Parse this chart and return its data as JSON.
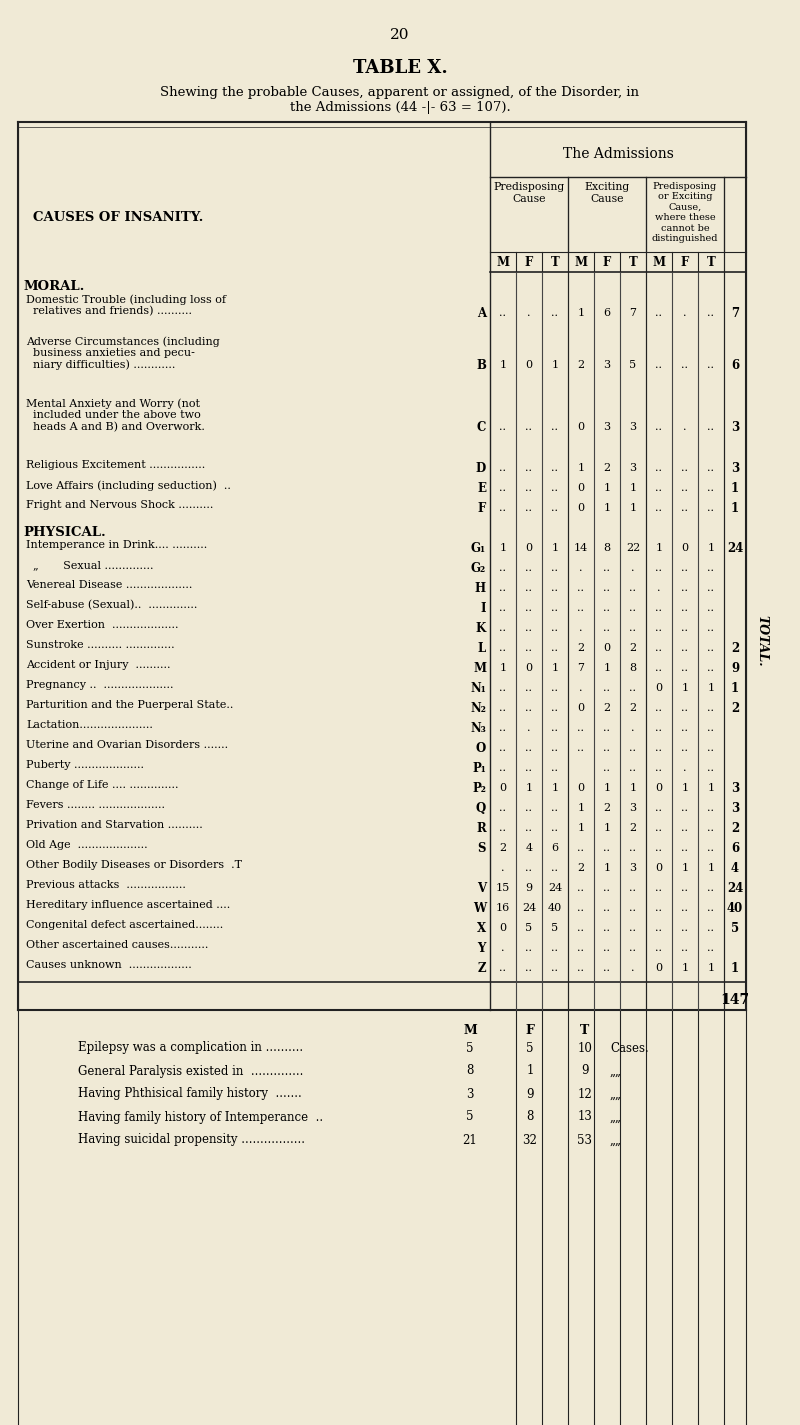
{
  "page_num": "20",
  "title": "TABLE X.",
  "subtitle": "Shewing the probable Causes, apparent or assigned, of the Disorder, in\nthe Admissions (44 -|- 63 = 107).",
  "bg_color": "#f0ead6",
  "sections": [
    {
      "section": "MORAL.",
      "rows": [
        {
          "label": "Domestic Trouble (including loss of\n  relatives and friends) ..........",
          "code": "A",
          "pred": [
            "..",
            ".",
            ".."
          ],
          "exc": [
            "1",
            "6",
            "7"
          ],
          "pe": [
            "..",
            ".",
            ".."
          ],
          "total": "7",
          "lines": 2
        },
        {
          "label": "Adverse Circumstances (including\n  business anxieties and pecu-\n  niary difficulties) ............",
          "code": "B",
          "pred": [
            "1",
            "0",
            "1"
          ],
          "exc": [
            "2",
            "3",
            "5"
          ],
          "pe": [
            "..",
            "..",
            ".."
          ],
          "total": "6",
          "lines": 3
        },
        {
          "label": "Mental Anxiety and Worry (not\n  included under the above two\n  heads A and B) and Overwork.",
          "code": "C",
          "pred": [
            "..",
            "..",
            ".."
          ],
          "exc": [
            "0",
            "3",
            "3"
          ],
          "pe": [
            "..",
            ".",
            ".."
          ],
          "total": "3",
          "lines": 3
        },
        {
          "label": "Religious Excitement ................",
          "code": "D",
          "pred": [
            "..",
            "..",
            ".."
          ],
          "exc": [
            "1",
            "2",
            "3"
          ],
          "pe": [
            "..",
            "..",
            ".."
          ],
          "total": "3",
          "lines": 1
        },
        {
          "label": "Love Affairs (including seduction)  ..",
          "code": "E",
          "pred": [
            "..",
            "..",
            ".."
          ],
          "exc": [
            "0",
            "1",
            "1"
          ],
          "pe": [
            "..",
            "..",
            ".."
          ],
          "total": "1",
          "lines": 1
        },
        {
          "label": "Fright and Nervous Shock ..........",
          "code": "F",
          "pred": [
            "..",
            "..",
            ".."
          ],
          "exc": [
            "0",
            "1",
            "1"
          ],
          "pe": [
            "..",
            "..",
            ".."
          ],
          "total": "1",
          "lines": 1
        }
      ]
    },
    {
      "section": "PHYSICAL.",
      "rows": [
        {
          "label": "Intemperance in Drink.... ..........",
          "code": "G₁",
          "pred": [
            "1",
            "0",
            "1"
          ],
          "exc": [
            "14",
            "8",
            "22"
          ],
          "pe": [
            "1",
            "0",
            "1"
          ],
          "total": "24",
          "lines": 1
        },
        {
          "label": "  „       Sexual ..............",
          "code": "G₂",
          "pred": [
            "..",
            "..",
            ".."
          ],
          "exc": [
            ".",
            "..",
            "."
          ],
          "pe": [
            "..",
            "..",
            ".."
          ],
          "total": ".",
          "lines": 1
        },
        {
          "label": "Venereal Disease ...................",
          "code": "H",
          "pred": [
            "..",
            "..",
            ".."
          ],
          "exc": [
            "..",
            "..",
            ".."
          ],
          "pe": [
            ".",
            "..",
            ".."
          ],
          "total": "..",
          "lines": 1
        },
        {
          "label": "Self-abuse (Sexual)..  ..............",
          "code": "I",
          "pred": [
            "..",
            "..",
            ".."
          ],
          "exc": [
            "..",
            "..",
            ".."
          ],
          "pe": [
            "..",
            "..",
            ".."
          ],
          "total": "..",
          "lines": 1
        },
        {
          "label": "Over Exertion  ...................",
          "code": "K",
          "pred": [
            "..",
            "..",
            ".."
          ],
          "exc": [
            ".",
            "..",
            ".."
          ],
          "pe": [
            "..",
            "..",
            ".."
          ],
          "total": "..",
          "lines": 1
        },
        {
          "label": "Sunstroke .......... ..............",
          "code": "L",
          "pred": [
            "..",
            "..",
            ".."
          ],
          "exc": [
            "2",
            "0",
            "2"
          ],
          "pe": [
            "..",
            "..",
            ".."
          ],
          "total": "2",
          "lines": 1
        },
        {
          "label": "Accident or Injury  ..........",
          "code": "M",
          "pred": [
            "1",
            "0",
            "1"
          ],
          "exc": [
            "7",
            "1",
            "8"
          ],
          "pe": [
            "..",
            "..",
            ".."
          ],
          "total": "9",
          "lines": 1
        },
        {
          "label": "Pregnancy ..  ....................",
          "code": "N₁",
          "pred": [
            "..",
            "..",
            ".."
          ],
          "exc": [
            ".",
            "..",
            ".."
          ],
          "pe": [
            "0",
            "1",
            "1"
          ],
          "total": "1",
          "lines": 1
        },
        {
          "label": "Parturition and the Puerperal State..",
          "code": "N₂",
          "pred": [
            "..",
            "..",
            ".."
          ],
          "exc": [
            "0",
            "2",
            "2"
          ],
          "pe": [
            "..",
            "..",
            ".."
          ],
          "total": "2",
          "lines": 1
        },
        {
          "label": "Lactation.....................",
          "code": "N₃",
          "pred": [
            "..",
            ".",
            ".."
          ],
          "exc": [
            "..",
            "..",
            "."
          ],
          "pe": [
            "..",
            "..",
            ".."
          ],
          "total": "..",
          "lines": 1
        },
        {
          "label": "Uterine and Ovarian Disorders .......",
          "code": "O",
          "pred": [
            "..",
            "..",
            ".."
          ],
          "exc": [
            "..",
            "..",
            ".."
          ],
          "pe": [
            "..",
            "..",
            ".."
          ],
          "total": "..",
          "lines": 1
        },
        {
          "label": "Puberty ....................",
          "code": "P₁",
          "pred": [
            "..",
            "..",
            ".."
          ],
          "exc": [
            "",
            "..",
            ".."
          ],
          "pe": [
            "..",
            ".",
            ".."
          ],
          "total": "..",
          "lines": 1
        },
        {
          "label": "Change of Life .... ..............",
          "code": "P₂",
          "pred": [
            "0",
            "1",
            "1"
          ],
          "exc": [
            "0",
            "1",
            "1"
          ],
          "pe": [
            "0",
            "1",
            "1"
          ],
          "total": "3",
          "lines": 1
        },
        {
          "label": "Fevers ........ ...................",
          "code": "Q",
          "pred": [
            "..",
            "..",
            ".."
          ],
          "exc": [
            "1",
            "2",
            "3"
          ],
          "pe": [
            "..",
            "..",
            ".."
          ],
          "total": "3",
          "lines": 1
        },
        {
          "label": "Privation and Starvation ..........",
          "code": "R",
          "pred": [
            "..",
            "..",
            ".."
          ],
          "exc": [
            "1",
            "1",
            "2"
          ],
          "pe": [
            "..",
            "..",
            ".."
          ],
          "total": "2",
          "lines": 1
        },
        {
          "label": "Old Age  ....................",
          "code": "S",
          "pred": [
            "2",
            "4",
            "6"
          ],
          "exc": [
            "..",
            "..",
            ".."
          ],
          "pe": [
            "..",
            "..",
            ".."
          ],
          "total": "6",
          "lines": 1
        },
        {
          "label": "Other Bodily Diseases or Disorders  .T",
          "code": "",
          "pred": [
            ".",
            "..",
            ".."
          ],
          "exc": [
            "2",
            "1",
            "3"
          ],
          "pe": [
            "0",
            "1",
            "1"
          ],
          "total": "4",
          "lines": 1
        },
        {
          "label": "Previous attacks  .................",
          "code": "V",
          "pred": [
            "15",
            "9",
            "24"
          ],
          "exc": [
            "..",
            "..",
            ".."
          ],
          "pe": [
            "..",
            "..",
            ".."
          ],
          "total": "24",
          "lines": 1
        },
        {
          "label": "Hereditary influence ascertained ....",
          "code": "W",
          "pred": [
            "16",
            "24",
            "40"
          ],
          "exc": [
            "..",
            "..",
            ".."
          ],
          "pe": [
            "..",
            "..",
            ".."
          ],
          "total": "40",
          "lines": 1
        },
        {
          "label": "Congenital defect ascertained........",
          "code": "X",
          "pred": [
            "0",
            "5",
            "5"
          ],
          "exc": [
            "..",
            "..",
            ".."
          ],
          "pe": [
            "..",
            "..",
            ".."
          ],
          "total": "5",
          "lines": 1
        },
        {
          "label": "Other ascertained causes...........",
          "code": "Y",
          "pred": [
            ".",
            "..",
            ".."
          ],
          "exc": [
            "..",
            "..",
            ".."
          ],
          "pe": [
            "..",
            "..",
            ".."
          ],
          "total": "..",
          "lines": 1
        },
        {
          "label": "Causes unknown  ..................",
          "code": "Z",
          "pred": [
            "..",
            "..",
            ".."
          ],
          "exc": [
            "..",
            "..",
            "."
          ],
          "pe": [
            "0",
            "1",
            "1"
          ],
          "total": "1",
          "lines": 1
        }
      ]
    }
  ],
  "grand_total": "147",
  "footer_rows": [
    {
      "label": "Epilepsy was a complication in ..........",
      "M": "5",
      "F": "5",
      "T": "10",
      "unit": "Cases."
    },
    {
      "label": "General Paralysis existed in  ..............",
      "M": "8",
      "F": "1",
      "T": "9",
      "unit": "„„"
    },
    {
      "label": "Having Phthisical family history  .......",
      "M": "3",
      "F": "9",
      "T": "12",
      "unit": "„„"
    },
    {
      "label": "Having family history of Intemperance  ..",
      "M": "5",
      "F": "8",
      "T": "13",
      "unit": "„„"
    },
    {
      "label": "Having suicidal propensity .................",
      "M": "21",
      "F": "32",
      "T": "53",
      "unit": "„„"
    }
  ]
}
